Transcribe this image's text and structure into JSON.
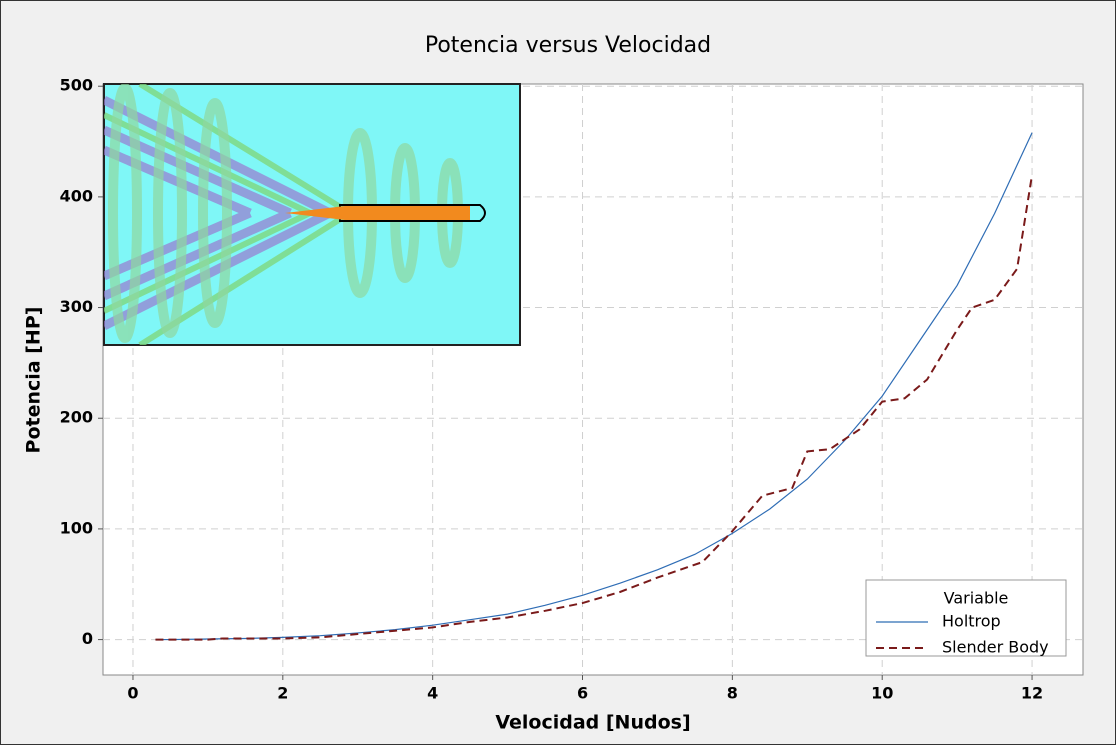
{
  "chart_data": {
    "type": "line",
    "title": "Potencia versus Velocidad",
    "x_label": "Velocidad [Nudos]",
    "y_label": "Potencia [HP]",
    "xlim": [
      -0.4,
      12.68
    ],
    "ylim": [
      -32,
      502
    ],
    "xticks": [
      0,
      2,
      4,
      6,
      8,
      10,
      12
    ],
    "yticks": [
      0,
      100,
      200,
      300,
      400,
      500
    ],
    "grid": true,
    "legend_title": "Variable",
    "legend_position": "lower right",
    "series": [
      {
        "name": "Holtrop",
        "color": "#2f6db5",
        "dash": false,
        "x": [
          0.3,
          0.5,
          1,
          1.5,
          2,
          2.5,
          3,
          3.5,
          4,
          4.5,
          5,
          5.5,
          6,
          6.5,
          7,
          7.5,
          8,
          8.5,
          9,
          9.5,
          10,
          10.5,
          11,
          11.5,
          12
        ],
        "values": [
          0,
          0,
          0.5,
          1,
          2,
          3.5,
          6,
          9,
          13,
          18,
          23,
          31,
          40,
          51,
          63,
          77,
          96,
          118,
          145,
          180,
          220,
          270,
          320,
          385,
          458
        ]
      },
      {
        "name": "Slender Body",
        "color": "#7a1a1a",
        "dash": true,
        "x": [
          0.3,
          1,
          1.2,
          2,
          2.5,
          3,
          3.5,
          4,
          4.5,
          5,
          5.5,
          6,
          6.5,
          7,
          7.6,
          8,
          8.4,
          8.8,
          9,
          9.3,
          9.7,
          10,
          10.3,
          10.6,
          11,
          11.2,
          11.5,
          11.8,
          12
        ],
        "values": [
          0,
          0,
          1,
          1,
          2,
          5,
          8,
          11,
          16,
          20,
          26,
          33,
          43,
          56,
          70,
          98,
          130,
          137,
          170,
          172,
          190,
          215,
          218,
          235,
          280,
          300,
          307,
          335,
          420
        ]
      }
    ]
  }
}
